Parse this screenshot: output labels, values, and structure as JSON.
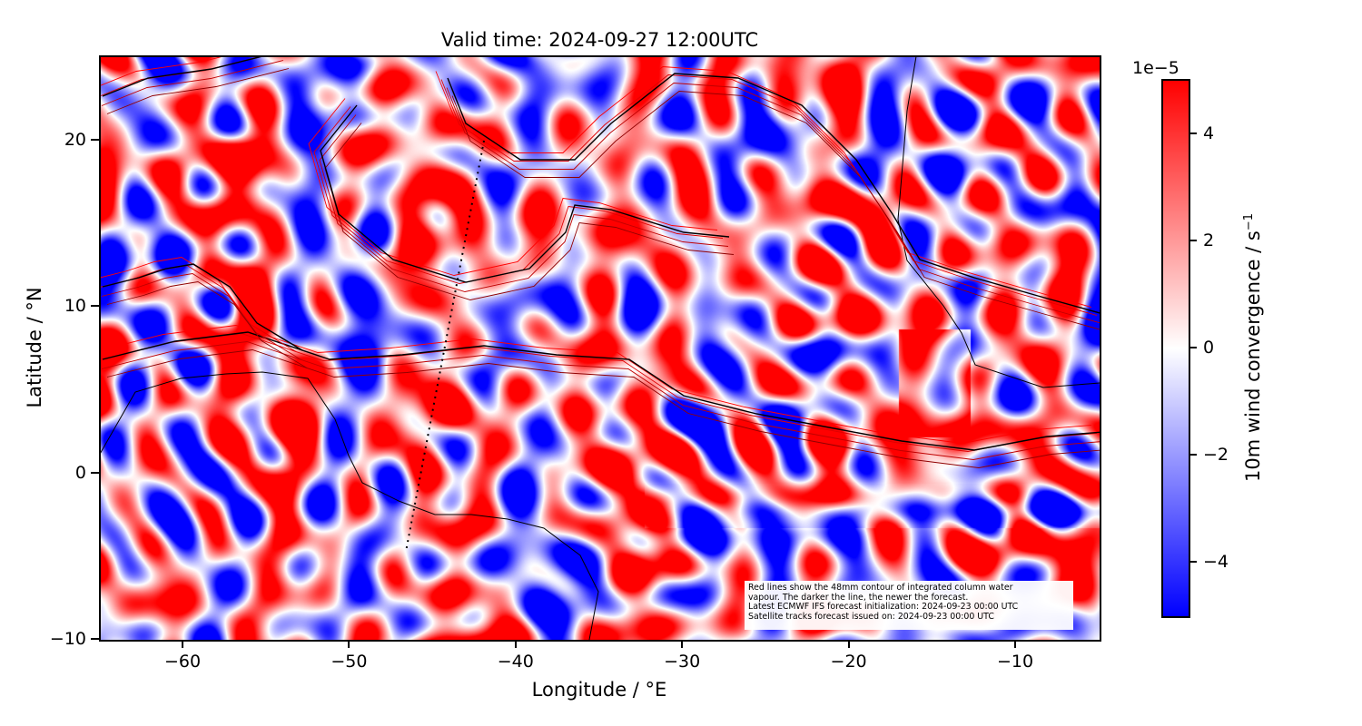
{
  "title": "Valid time: 2024-09-27 12:00UTC",
  "chart_data": {
    "type": "heatmap",
    "title": "Valid time: 2024-09-27 12:00UTC",
    "xlabel": "Longitude / °E",
    "ylabel": "Latitude / °N",
    "xlim": [
      -65,
      -5
    ],
    "ylim": [
      -10,
      25
    ],
    "xticks": [
      "−60",
      "−50",
      "−40",
      "−30",
      "−20",
      "−10"
    ],
    "xtick_values": [
      -60,
      -50,
      -40,
      -30,
      -20,
      -10
    ],
    "yticks": [
      "20",
      "10",
      "0",
      "−10"
    ],
    "ytick_values": [
      20,
      10,
      0,
      -10
    ],
    "colormap": "bwr",
    "colorbar": {
      "label": "10m wind convergence / s",
      "label_exponent": "−1",
      "scale": "1e−5",
      "range": [
        -5,
        5
      ],
      "ticks": [
        "4",
        "2",
        "0",
        "−2",
        "−4"
      ],
      "tick_values": [
        4,
        2,
        0,
        -2,
        -4
      ]
    },
    "overlays": {
      "contour_color_new": "#000000",
      "contour_color_old": "#ff0000",
      "coastline_color": "#000000",
      "satellite_track": {
        "style": "dotted",
        "from": [
          -42,
          20
        ],
        "to": [
          -46.7,
          -5
        ]
      }
    }
  },
  "annotation": [
    "Red lines show the 48mm contour of integrated column water",
    "vapour. The darker the line, the newer the forecast.",
    "Latest ECMWF IFS forecast initialization: 2024-09-23 00:00 UTC",
    "Satellite tracks forecast issued on: 2024-09-23 00:00 UTC"
  ]
}
